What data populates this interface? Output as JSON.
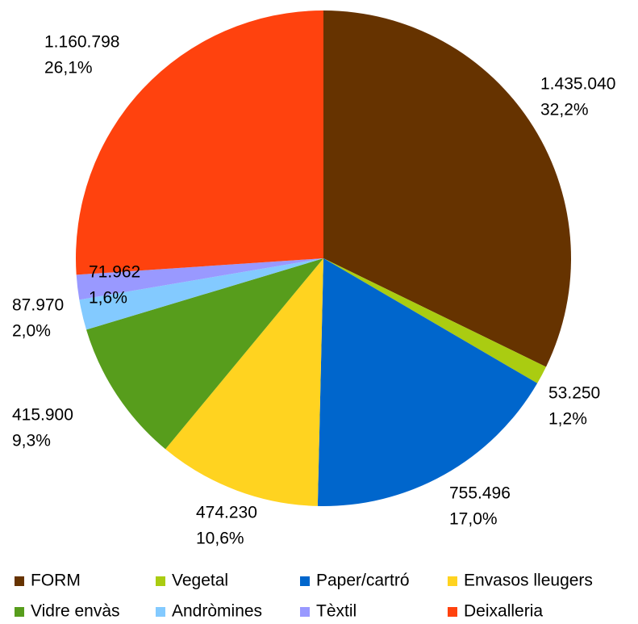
{
  "chart_data": {
    "type": "pie",
    "categories": [
      "FORM",
      "Vegetal",
      "Paper/cartró",
      "Envasos lleugers",
      "Vidre envàs",
      "Andròmines",
      "Tèxtil",
      "Deixalleria"
    ],
    "values": [
      1435040,
      53250,
      755496,
      474230,
      415900,
      87970,
      71962,
      1160798
    ],
    "value_labels": [
      "1.435.040",
      "53.250",
      "755.496",
      "474.230",
      "415.900",
      "87.970",
      "71.962",
      "1.160.798"
    ],
    "percent_labels": [
      "32,2%",
      "1,2%",
      "17,0%",
      "10,6%",
      "9,3%",
      "2,0%",
      "1,6%",
      "26,1%"
    ],
    "colors": [
      "#663300",
      "#aacc11",
      "#0066cc",
      "#ffd320",
      "#579d1c",
      "#83caff",
      "#9999ff",
      "#ff420e"
    ],
    "legend": "bottom"
  }
}
